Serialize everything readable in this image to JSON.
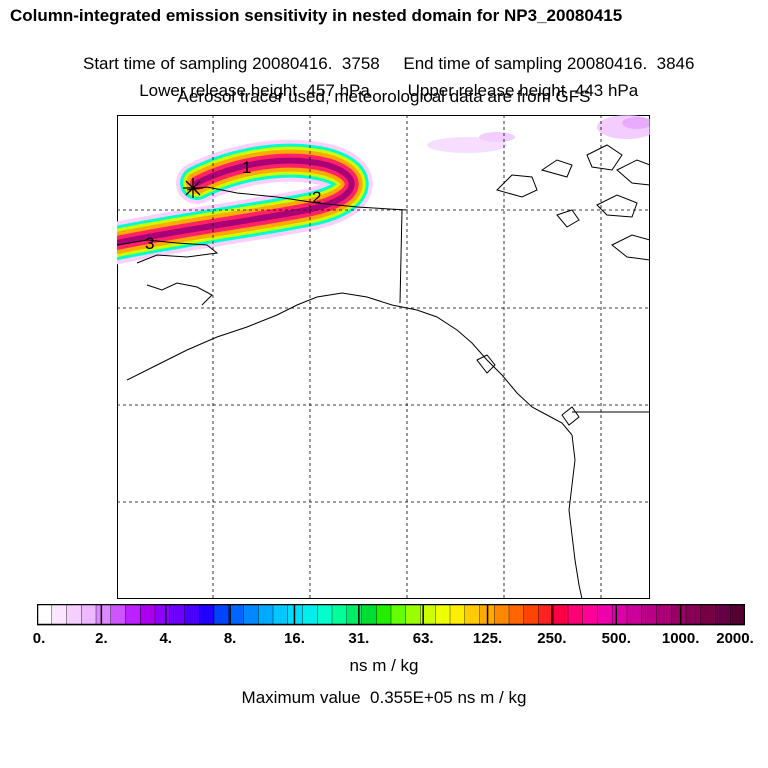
{
  "header": {
    "title": "Column-integrated emission sensitivity in nested domain for NP3_20080415",
    "start_label": "Start time of sampling 20080416.  3758",
    "end_label": "End time of sampling 20080416.  3846",
    "lower_label": "Lower release height  457 hPa",
    "upper_label": "Upper release height  443 hPa",
    "tracer_line": "Aerosol tracer used, meteorological data are from GFS"
  },
  "map": {
    "release_marker": "asterisk-icon",
    "day_labels": [
      "1",
      "2",
      "3"
    ]
  },
  "colorbar": {
    "tick_labels": [
      "0.",
      "2.",
      "4.",
      "8.",
      "16.",
      "31.",
      "63.",
      "125.",
      "250.",
      "500.",
      "1000.",
      "2000."
    ],
    "colors": [
      "#ffffff",
      "#fbe6ff",
      "#f5d0ff",
      "#eeb8ff",
      "#dd88ff",
      "#cc55ff",
      "#bb22ff",
      "#aa00ee",
      "#8f00ff",
      "#6e00ff",
      "#4b00ff",
      "#2200ff",
      "#0044ff",
      "#0066ff",
      "#0088ff",
      "#00aaff",
      "#00c8ff",
      "#00ddff",
      "#00eeee",
      "#00ffcc",
      "#00ff99",
      "#00ee66",
      "#00dd33",
      "#22ee00",
      "#66ff00",
      "#99ff00",
      "#ccff00",
      "#eeff00",
      "#ffee00",
      "#ffcc00",
      "#ffaa00",
      "#ff8800",
      "#ff6600",
      "#ff4400",
      "#ff2222",
      "#ff0044",
      "#ff0077",
      "#ff0099",
      "#ee00aa",
      "#dd00aa",
      "#cc0099",
      "#bb0088",
      "#aa0077",
      "#990066",
      "#880055",
      "#770044",
      "#660044",
      "#550033"
    ],
    "units": "ns m / kg"
  },
  "footer": {
    "max_value": "Maximum value  0.355E+05 ns m / kg"
  }
}
